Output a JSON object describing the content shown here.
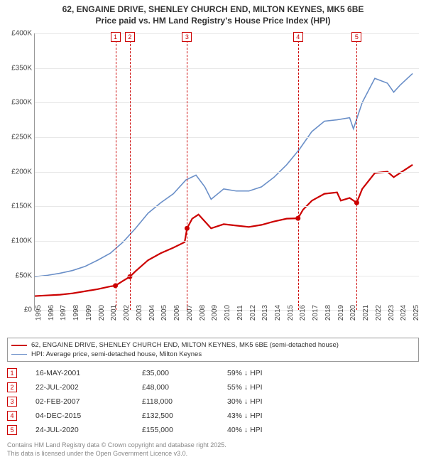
{
  "title": {
    "line1": "62, ENGAINE DRIVE, SHENLEY CHURCH END, MILTON KEYNES, MK5 6BE",
    "line2": "Price paid vs. HM Land Registry's House Price Index (HPI)",
    "fontsize": 12,
    "color": "#333333"
  },
  "chart": {
    "type": "line",
    "background_color": "#ffffff",
    "grid_color": "#e8e8e8",
    "axis_color": "#999999",
    "x_range": [
      1995,
      2025.5
    ],
    "y_range": [
      0,
      400
    ],
    "y_ticks": [
      {
        "v": 0,
        "label": "£0"
      },
      {
        "v": 50,
        "label": "£50K"
      },
      {
        "v": 100,
        "label": "£100K"
      },
      {
        "v": 150,
        "label": "£150K"
      },
      {
        "v": 200,
        "label": "£200K"
      },
      {
        "v": 250,
        "label": "£250K"
      },
      {
        "v": 300,
        "label": "£300K"
      },
      {
        "v": 350,
        "label": "£350K"
      },
      {
        "v": 400,
        "label": "£400K"
      }
    ],
    "x_ticks": [
      1995,
      1996,
      1997,
      1998,
      1999,
      2000,
      2001,
      2002,
      2003,
      2004,
      2005,
      2006,
      2007,
      2008,
      2009,
      2010,
      2011,
      2012,
      2013,
      2014,
      2015,
      2016,
      2017,
      2018,
      2019,
      2020,
      2021,
      2022,
      2023,
      2024,
      2025
    ],
    "tick_fontsize": 10,
    "series_red": {
      "color": "#cc0000",
      "width": 2.2,
      "points": [
        [
          1995,
          20
        ],
        [
          1996,
          21
        ],
        [
          1997,
          22
        ],
        [
          1998,
          24
        ],
        [
          1999,
          27
        ],
        [
          2000,
          30
        ],
        [
          2001,
          34
        ],
        [
          2001.4,
          35
        ],
        [
          2002,
          42
        ],
        [
          2002.55,
          48
        ],
        [
          2003,
          56
        ],
        [
          2004,
          72
        ],
        [
          2005,
          82
        ],
        [
          2006,
          90
        ],
        [
          2006.9,
          98
        ],
        [
          2007.09,
          118
        ],
        [
          2007.5,
          132
        ],
        [
          2008,
          138
        ],
        [
          2008.5,
          128
        ],
        [
          2009,
          118
        ],
        [
          2010,
          124
        ],
        [
          2011,
          122
        ],
        [
          2012,
          120
        ],
        [
          2013,
          123
        ],
        [
          2014,
          128
        ],
        [
          2015,
          132
        ],
        [
          2015.9,
          132.5
        ],
        [
          2016.3,
          145
        ],
        [
          2017,
          158
        ],
        [
          2018,
          168
        ],
        [
          2019,
          170
        ],
        [
          2019.3,
          158
        ],
        [
          2020,
          162
        ],
        [
          2020.56,
          155
        ],
        [
          2021,
          175
        ],
        [
          2022,
          198
        ],
        [
          2023,
          200
        ],
        [
          2023.5,
          192
        ],
        [
          2024,
          198
        ],
        [
          2025,
          210
        ]
      ],
      "sale_dots": [
        [
          2001.4,
          35
        ],
        [
          2002.55,
          48
        ],
        [
          2007.09,
          118
        ],
        [
          2015.9,
          132.5
        ],
        [
          2020.56,
          155
        ]
      ]
    },
    "series_blue": {
      "color": "#6a8fc8",
      "width": 1.6,
      "points": [
        [
          1995,
          48
        ],
        [
          1996,
          50
        ],
        [
          1997,
          53
        ],
        [
          1998,
          57
        ],
        [
          1999,
          63
        ],
        [
          2000,
          72
        ],
        [
          2001,
          82
        ],
        [
          2002,
          98
        ],
        [
          2003,
          118
        ],
        [
          2004,
          140
        ],
        [
          2005,
          155
        ],
        [
          2006,
          168
        ],
        [
          2007,
          188
        ],
        [
          2007.8,
          195
        ],
        [
          2008.5,
          178
        ],
        [
          2009,
          160
        ],
        [
          2010,
          175
        ],
        [
          2011,
          172
        ],
        [
          2012,
          172
        ],
        [
          2013,
          178
        ],
        [
          2014,
          192
        ],
        [
          2015,
          210
        ],
        [
          2016,
          232
        ],
        [
          2017,
          258
        ],
        [
          2018,
          273
        ],
        [
          2019,
          275
        ],
        [
          2020,
          278
        ],
        [
          2020.3,
          262
        ],
        [
          2021,
          300
        ],
        [
          2022,
          335
        ],
        [
          2023,
          328
        ],
        [
          2023.5,
          315
        ],
        [
          2024,
          325
        ],
        [
          2025,
          342
        ]
      ]
    },
    "markers": [
      {
        "n": "1",
        "x": 2001.4
      },
      {
        "n": "2",
        "x": 2002.55
      },
      {
        "n": "3",
        "x": 2007.09
      },
      {
        "n": "4",
        "x": 2015.9
      },
      {
        "n": "5",
        "x": 2020.56
      }
    ],
    "marker_color": "#cc0000"
  },
  "legend": {
    "border_color": "#999999",
    "items": [
      {
        "color": "#cc0000",
        "width": 2.2,
        "label": "62, ENGAINE DRIVE, SHENLEY CHURCH END, MILTON KEYNES, MK5 6BE (semi-detached house)"
      },
      {
        "color": "#6a8fc8",
        "width": 1.6,
        "label": "HPI: Average price, semi-detached house, Milton Keynes"
      }
    ]
  },
  "sales_table": {
    "rows": [
      {
        "n": "1",
        "date": "16-MAY-2001",
        "price": "£35,000",
        "pct": "59% ↓ HPI"
      },
      {
        "n": "2",
        "date": "22-JUL-2002",
        "price": "£48,000",
        "pct": "55% ↓ HPI"
      },
      {
        "n": "3",
        "date": "02-FEB-2007",
        "price": "£118,000",
        "pct": "30% ↓ HPI"
      },
      {
        "n": "4",
        "date": "04-DEC-2015",
        "price": "£132,500",
        "pct": "43% ↓ HPI"
      },
      {
        "n": "5",
        "date": "24-JUL-2020",
        "price": "£155,000",
        "pct": "40% ↓ HPI"
      }
    ]
  },
  "footer": {
    "line1": "Contains HM Land Registry data © Crown copyright and database right 2025.",
    "line2": "This data is licensed under the Open Government Licence v3.0."
  }
}
